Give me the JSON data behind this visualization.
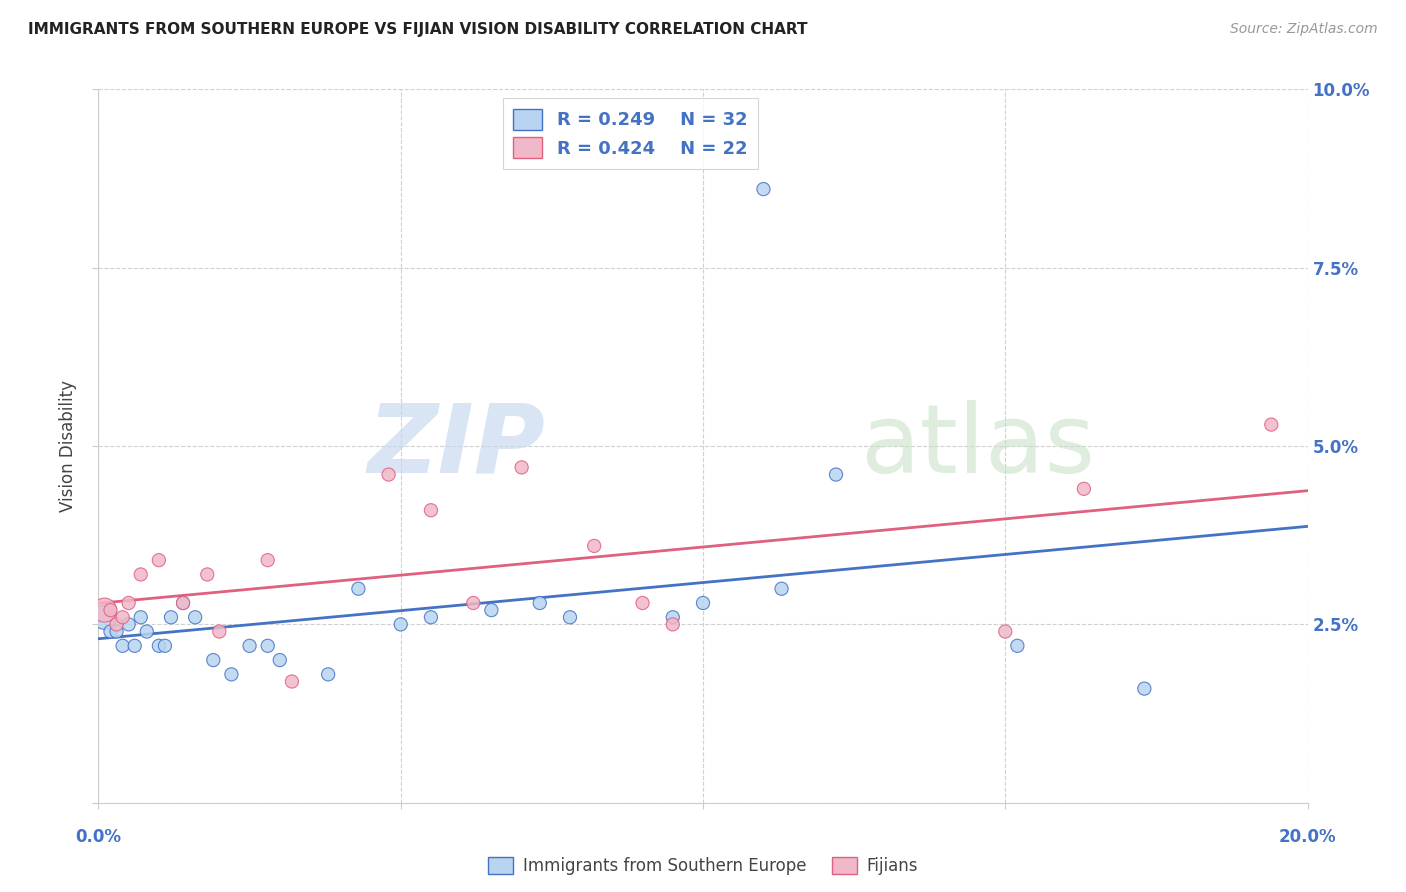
{
  "title": "IMMIGRANTS FROM SOUTHERN EUROPE VS FIJIAN VISION DISABILITY CORRELATION CHART",
  "source": "Source: ZipAtlas.com",
  "xlabel_blue": "Immigrants from Southern Europe",
  "xlabel_pink": "Fijians",
  "ylabel": "Vision Disability",
  "xlim": [
    0,
    0.2
  ],
  "ylim": [
    0,
    0.1
  ],
  "xticks": [
    0.0,
    0.05,
    0.1,
    0.15,
    0.2
  ],
  "yticks": [
    0.0,
    0.025,
    0.05,
    0.075,
    0.1
  ],
  "legend_r_blue": "R = 0.249",
  "legend_n_blue": "N = 32",
  "legend_r_pink": "R = 0.424",
  "legend_n_pink": "N = 22",
  "blue_fill": "#b8d4f0",
  "pink_fill": "#f0b8c8",
  "blue_edge": "#4472c4",
  "pink_edge": "#e06080",
  "blue_x": [
    0.001,
    0.002,
    0.003,
    0.004,
    0.005,
    0.006,
    0.007,
    0.008,
    0.01,
    0.011,
    0.012,
    0.014,
    0.016,
    0.019,
    0.022,
    0.025,
    0.028,
    0.03,
    0.038,
    0.043,
    0.05,
    0.055,
    0.065,
    0.073,
    0.078,
    0.095,
    0.1,
    0.11,
    0.113,
    0.122,
    0.152,
    0.173
  ],
  "blue_y": [
    0.026,
    0.024,
    0.024,
    0.022,
    0.025,
    0.022,
    0.026,
    0.024,
    0.022,
    0.022,
    0.026,
    0.028,
    0.026,
    0.02,
    0.018,
    0.022,
    0.022,
    0.02,
    0.018,
    0.03,
    0.025,
    0.026,
    0.027,
    0.028,
    0.026,
    0.026,
    0.028,
    0.086,
    0.03,
    0.046,
    0.022,
    0.016
  ],
  "pink_x": [
    0.001,
    0.002,
    0.003,
    0.004,
    0.005,
    0.007,
    0.01,
    0.014,
    0.018,
    0.02,
    0.028,
    0.032,
    0.048,
    0.055,
    0.062,
    0.07,
    0.082,
    0.09,
    0.095,
    0.15,
    0.163,
    0.194
  ],
  "pink_y": [
    0.027,
    0.027,
    0.025,
    0.026,
    0.028,
    0.032,
    0.034,
    0.028,
    0.032,
    0.024,
    0.034,
    0.017,
    0.046,
    0.041,
    0.028,
    0.047,
    0.036,
    0.028,
    0.025,
    0.024,
    0.044,
    0.053
  ],
  "marker_size": 90,
  "large_marker_size": 300,
  "watermark_color": "#c8ddf5",
  "background_color": "#ffffff",
  "grid_color": "#d0d0d0",
  "spine_color": "#cccccc",
  "title_color": "#222222",
  "source_color": "#999999",
  "ylabel_color": "#444444",
  "tick_label_color": "#4472c4"
}
